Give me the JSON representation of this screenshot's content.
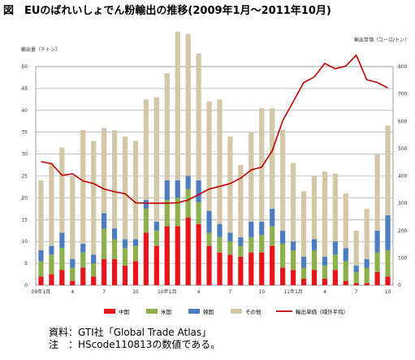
{
  "title": "図　EUのばれいしょでん粉輸出の推移(2009年1月～2011年10月)",
  "source_lines": [
    "資料：GTI社「Global Trade Atlas」",
    "注　：HScode110813の数値である。"
  ],
  "colors": {
    "china": "#e8141c",
    "us": "#8db04b",
    "korea": "#4a7ec1",
    "other": "#d3c7a7",
    "price": "#c00000"
  },
  "chart_data": {
    "type": "bar",
    "stacked": true,
    "title": "",
    "ylabel": "輸出量（千トン）",
    "y2label": "輸出単価（ユーロ/トン）",
    "ylim": [
      0,
      60
    ],
    "ylim2": [
      0,
      600
    ],
    "yticks": [
      "0",
      "5",
      "10",
      "15",
      "20",
      "25",
      "30",
      "35",
      "40",
      "45",
      "50"
    ],
    "y2ticks": [
      "0",
      "100",
      "200",
      "300",
      "400",
      "500",
      "600",
      "700",
      "800"
    ],
    "ylim_note": "",
    "categories": [
      "09年1月",
      "2",
      "3",
      "4",
      "5",
      "6",
      "7",
      "8",
      "9",
      "10",
      "11",
      "12",
      "10年1月",
      "2",
      "3",
      "4",
      "5",
      "6",
      "7",
      "8",
      "9",
      "10",
      "11",
      "12",
      "11年1月",
      "2",
      "3",
      "4",
      "5",
      "6",
      "7",
      "8",
      "9",
      "10"
    ],
    "x_tick_labels": [
      {
        "index": 0,
        "label": "09年1月"
      },
      {
        "index": 3,
        "label": "4"
      },
      {
        "index": 6,
        "label": "7"
      },
      {
        "index": 9,
        "label": "10"
      },
      {
        "index": 12,
        "label": "10年1月"
      },
      {
        "index": 15,
        "label": "4"
      },
      {
        "index": 18,
        "label": "7"
      },
      {
        "index": 21,
        "label": "10"
      },
      {
        "index": 24,
        "label": "11年1月"
      },
      {
        "index": 27,
        "label": "4"
      },
      {
        "index": 30,
        "label": "7"
      },
      {
        "index": 33,
        "label": "10"
      }
    ],
    "series": [
      {
        "name": "中国",
        "values": [
          2,
          2.5,
          3.5,
          1,
          4,
          2,
          6,
          6,
          4.5,
          5.5,
          12,
          9,
          13.5,
          13.5,
          15.5,
          14,
          9,
          7.5,
          7,
          6.5,
          7.5,
          7.5,
          9,
          4,
          3.5,
          1.5,
          3.5,
          1.5,
          3.5,
          1,
          0.5,
          0.5,
          3,
          2
        ]
      },
      {
        "name": "米国",
        "values": [
          3.5,
          4.5,
          5,
          3,
          3.5,
          3,
          7,
          4.5,
          4,
          3.5,
          5.5,
          3.5,
          6,
          6.5,
          6.5,
          5,
          3,
          3.5,
          3,
          2.5,
          3.5,
          4,
          4.5,
          5.5,
          4.5,
          2.5,
          4.5,
          3,
          3.5,
          4.5,
          2.5,
          3.5,
          4.5,
          6
        ]
      },
      {
        "name": "韓国",
        "values": [
          2.5,
          2,
          3.5,
          2,
          2,
          2,
          3.5,
          2.5,
          2,
          1.5,
          2,
          2,
          4.5,
          4,
          3,
          5,
          5,
          3,
          2,
          2,
          3.5,
          3,
          4,
          3,
          2,
          2.5,
          2.5,
          2,
          3,
          3,
          1.5,
          2,
          5,
          8
        ]
      },
      {
        "name": "その他",
        "values": [
          16,
          19,
          19.5,
          19,
          26,
          26,
          19.5,
          22.5,
          23.5,
          22.5,
          23,
          28.5,
          24.5,
          34,
          32.5,
          29,
          25,
          28.5,
          22,
          16.5,
          20.5,
          26,
          23,
          23,
          18,
          15,
          14.5,
          19.5,
          15.5,
          12.5,
          8,
          11.5,
          17.5,
          20.5
        ]
      }
    ],
    "line": {
      "name": "輸出単価（域外平均）",
      "values": [
        452,
        445,
        402,
        408,
        382,
        372,
        352,
        342,
        335,
        302,
        300,
        300,
        300,
        302,
        312,
        332,
        352,
        362,
        372,
        392,
        422,
        432,
        492,
        602,
        672,
        742,
        762,
        812,
        792,
        802,
        842,
        752,
        742,
        722
      ]
    },
    "legend": [
      "中国",
      "米国",
      "韓国",
      "その他",
      "輸出単価（域外平均）"
    ],
    "grid": true,
    "legend_position": "bottom"
  }
}
